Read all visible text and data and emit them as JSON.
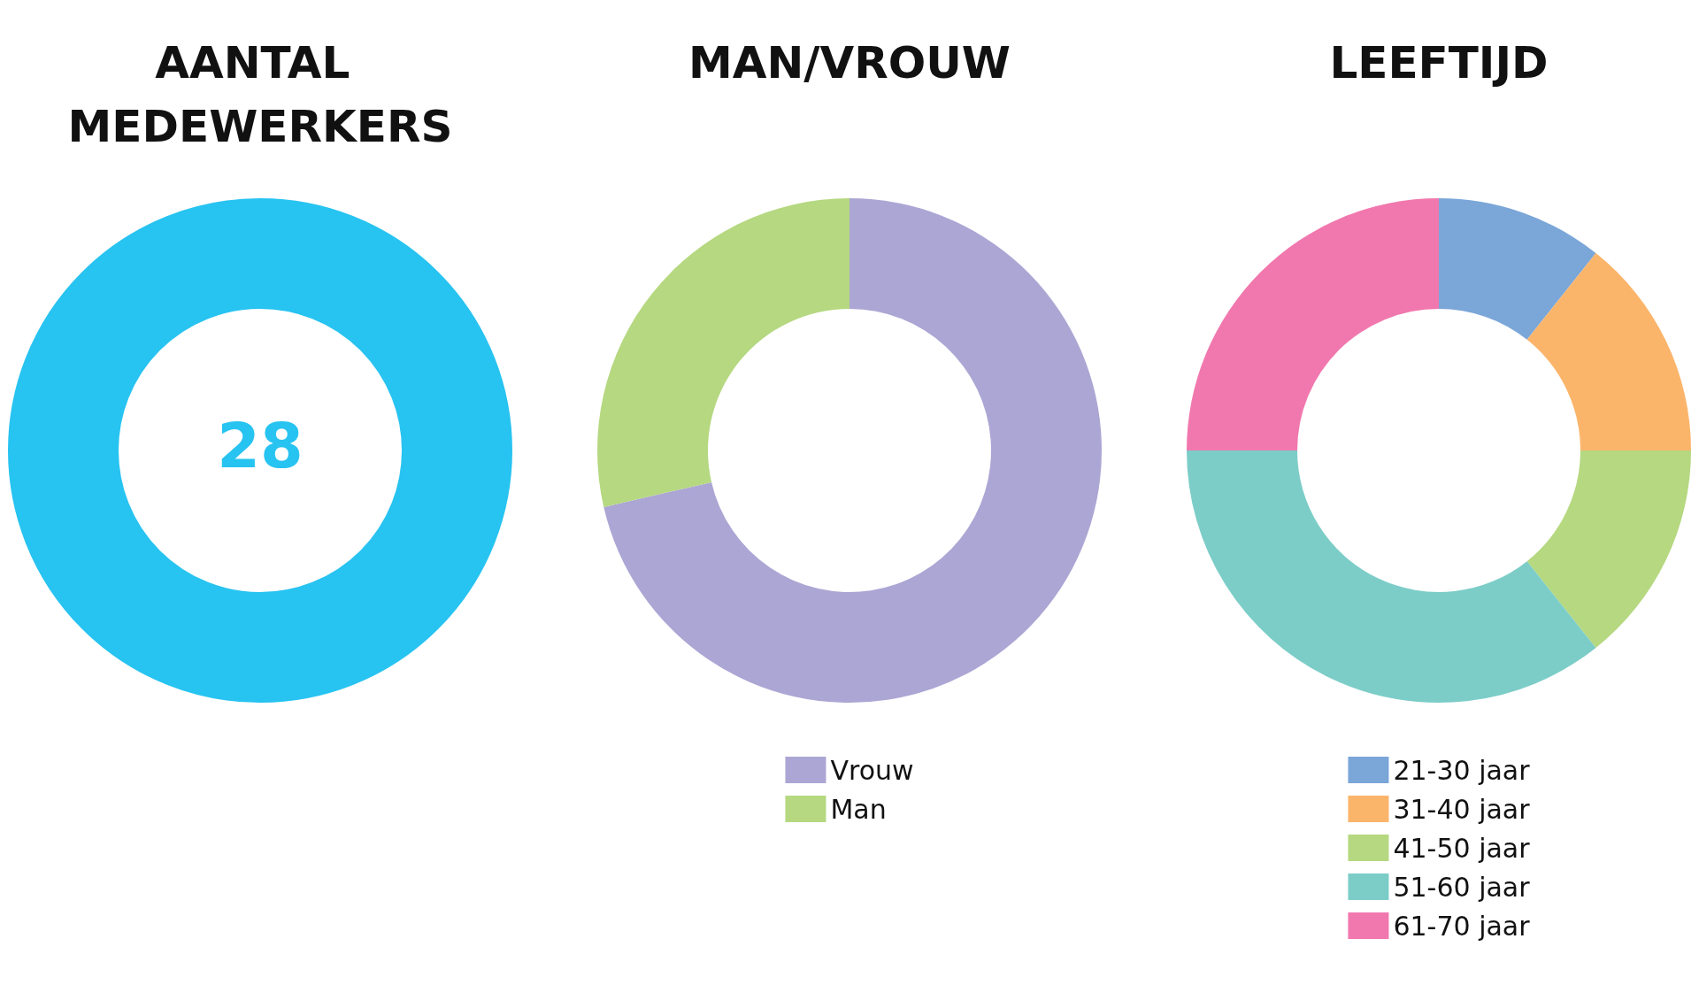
{
  "chart_data": [
    {
      "type": "other",
      "title": "AANTAL MEDEWERKERS",
      "annotations": [
        "28"
      ]
    },
    {
      "type": "donut",
      "title": "MAN/VROUW",
      "categories": [
        "Vrouw",
        "Man"
      ],
      "values": [
        71.4,
        28.6
      ],
      "colors": [
        "#aca6d4",
        "#b5d880"
      ],
      "legend": "bottom"
    },
    {
      "type": "donut",
      "title": "LEEFTIJD",
      "categories": [
        "21-30 jaar",
        "31-40 jaar",
        "41-50 jaar",
        "51-60 jaar",
        "61-70 jaar"
      ],
      "values": [
        10.7,
        14.3,
        14.3,
        35.7,
        25
      ],
      "colors": [
        "#7ba6d8",
        "#fbb56b",
        "#b5d880",
        "#7ccdc8",
        "#f178ae"
      ],
      "legend": "bottom"
    }
  ]
}
